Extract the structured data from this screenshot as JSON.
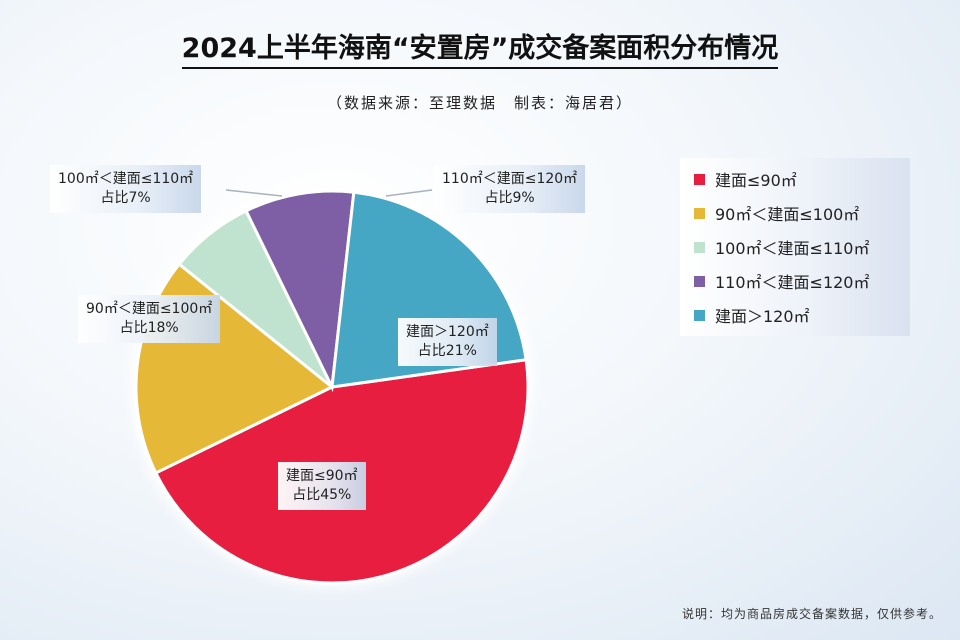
{
  "title": "2024上半年海南“安置房”成交备案面积分布情况",
  "source": "（数据来源：至理数据　制表：海居君）",
  "note": "说明：均为商品房成交备案数据，仅供参考。",
  "colors": [
    "#e81e40",
    "#e6b838",
    "#bfe3cf",
    "#7e5fa5",
    "#46a7c5"
  ],
  "chart_data": {
    "type": "pie",
    "categories": [
      "建面≤90㎡",
      "90㎡＜建面≤100㎡",
      "100㎡＜建面≤110㎡",
      "110㎡＜建面≤120㎡",
      "建面＞120㎡"
    ],
    "values": [
      45,
      18,
      7,
      9,
      21
    ],
    "legend_placement": "right",
    "labels": [
      {
        "name": "建面≤90㎡",
        "share": "占比45%"
      },
      {
        "name": "90㎡＜建面≤100㎡",
        "share": "占比18%"
      },
      {
        "name": "100㎡＜建面≤110㎡",
        "share": "占比7%"
      },
      {
        "name": "110㎡＜建面≤120㎡",
        "share": "占比9%"
      },
      {
        "name": "建面＞120㎡",
        "share": "占比21%"
      }
    ]
  }
}
